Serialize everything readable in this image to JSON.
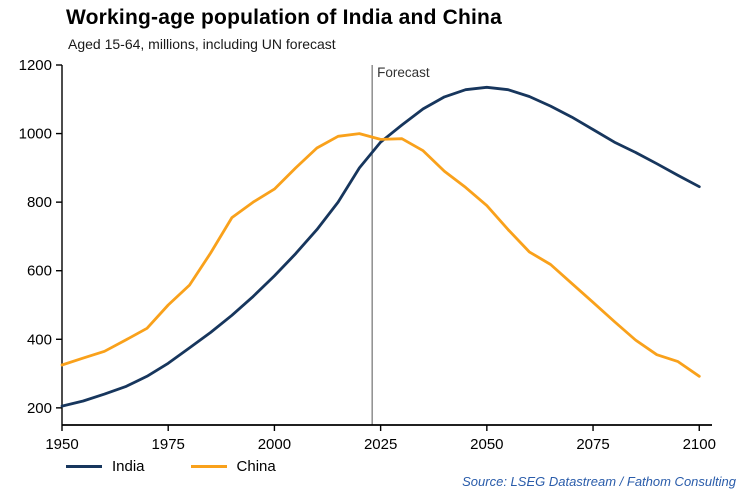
{
  "header": {
    "title": "Working-age population of India and China",
    "subtitle": "Aged 15-64, millions, including UN forecast"
  },
  "chart_data": {
    "type": "line",
    "title": "Working-age population of India and China",
    "subtitle": "Aged 15-64, millions, including UN forecast",
    "xlabel": "",
    "ylabel": "",
    "x": [
      1950,
      1955,
      1960,
      1965,
      1970,
      1975,
      1980,
      1985,
      1990,
      1995,
      2000,
      2005,
      2010,
      2015,
      2020,
      2025,
      2030,
      2035,
      2040,
      2045,
      2050,
      2055,
      2060,
      2065,
      2070,
      2075,
      2080,
      2085,
      2090,
      2095,
      2100
    ],
    "series": [
      {
        "name": "India",
        "color": "#17365d",
        "values": [
          205,
          220,
          240,
          262,
          292,
          330,
          375,
          420,
          470,
          525,
          585,
          650,
          720,
          800,
          900,
          975,
          1025,
          1072,
          1107,
          1128,
          1135,
          1128,
          1108,
          1080,
          1048,
          1012,
          975,
          945,
          912,
          878,
          845
        ]
      },
      {
        "name": "China",
        "color": "#f9a11b",
        "values": [
          325,
          345,
          365,
          398,
          432,
          500,
          558,
          652,
          755,
          800,
          838,
          900,
          958,
          992,
          1000,
          983,
          985,
          950,
          890,
          843,
          790,
          720,
          655,
          618,
          563,
          508,
          452,
          398,
          355,
          335,
          292
        ]
      }
    ],
    "xlim": [
      1950,
      2103
    ],
    "ylim": [
      150,
      1200
    ],
    "xticks": [
      1950,
      1975,
      2000,
      2025,
      2050,
      2075,
      2100
    ],
    "yticks": [
      200,
      400,
      600,
      800,
      1000,
      1200
    ],
    "grid": false,
    "legend_position": "bottom-left",
    "forecast_line": {
      "x": 2023,
      "label": "Forecast"
    }
  },
  "footer": {
    "source": "Source: LSEG Datastream / Fathom Consulting"
  }
}
